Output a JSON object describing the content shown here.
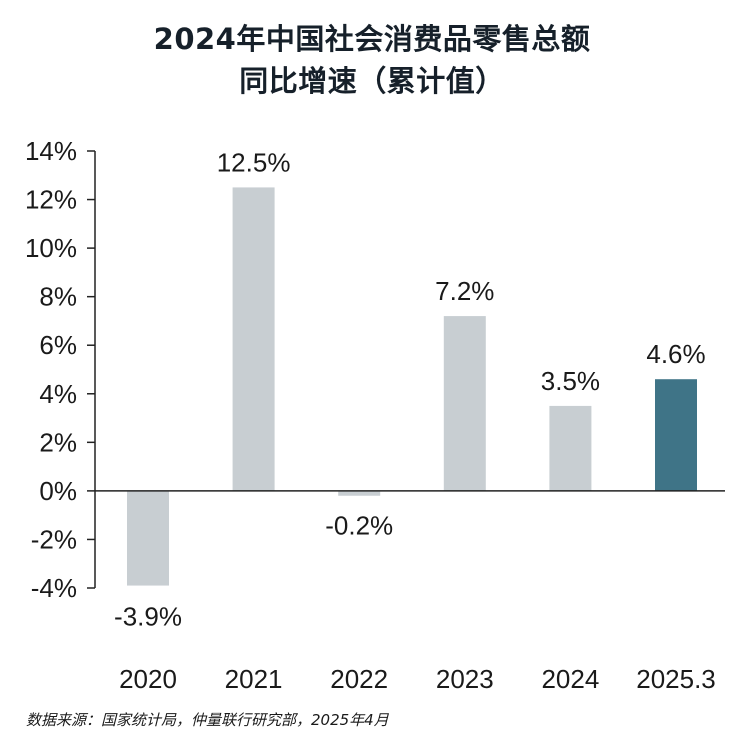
{
  "title": {
    "line1": "2024年中国社会消费品零售总额",
    "line2": "同比增速（累计值）"
  },
  "source": "数据来源：国家统计局，仲量联行研究部，2025年4月",
  "colors": {
    "bar": "#c8ced2",
    "highlight": "#3f7487",
    "axis": "#222222"
  },
  "chart_data": {
    "type": "bar",
    "categories": [
      "2020",
      "2021",
      "2022",
      "2023",
      "2024",
      "2025.3"
    ],
    "values": [
      -3.9,
      12.5,
      -0.2,
      7.2,
      3.5,
      4.6
    ],
    "value_labels": [
      "-3.9%",
      "12.5%",
      "-0.2%",
      "7.2%",
      "3.5%",
      "4.6%"
    ],
    "highlight_index": 5,
    "ylim": [
      -4,
      14
    ],
    "yticks": [
      -4,
      -2,
      0,
      2,
      4,
      6,
      8,
      10,
      12,
      14
    ],
    "ytick_labels": [
      "-4%",
      "-2%",
      "0%",
      "2%",
      "4%",
      "6%",
      "8%",
      "10%",
      "12%",
      "14%"
    ],
    "grid": false,
    "title": "2024年中国社会消费品零售总额 同比增速（累计值）",
    "xlabel": "",
    "ylabel": ""
  }
}
